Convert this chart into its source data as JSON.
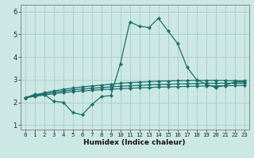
{
  "xlabel": "Humidex (Indice chaleur)",
  "xlim": [
    -0.5,
    23.5
  ],
  "ylim": [
    0.8,
    6.3
  ],
  "yticks": [
    1,
    2,
    3,
    4,
    5,
    6
  ],
  "xticks": [
    0,
    1,
    2,
    3,
    4,
    5,
    6,
    7,
    8,
    9,
    10,
    11,
    12,
    13,
    14,
    15,
    16,
    17,
    18,
    19,
    20,
    21,
    22,
    23
  ],
  "bg_color": "#cce8e4",
  "grid_color": "#aacfcc",
  "line_color": "#1a6e6a",
  "series": [
    [
      2.2,
      2.35,
      2.35,
      2.05,
      2.0,
      1.55,
      1.45,
      1.9,
      2.25,
      2.3,
      3.7,
      5.55,
      5.35,
      5.3,
      5.7,
      5.15,
      4.6,
      3.55,
      3.0,
      2.8,
      2.65,
      2.75,
      2.9,
      2.9
    ],
    [
      2.2,
      2.32,
      2.42,
      2.5,
      2.57,
      2.63,
      2.68,
      2.72,
      2.76,
      2.8,
      2.84,
      2.87,
      2.89,
      2.91,
      2.93,
      2.94,
      2.95,
      2.96,
      2.97,
      2.97,
      2.97,
      2.96,
      2.95,
      2.95
    ],
    [
      2.2,
      2.29,
      2.37,
      2.44,
      2.5,
      2.55,
      2.59,
      2.62,
      2.65,
      2.68,
      2.71,
      2.73,
      2.75,
      2.77,
      2.79,
      2.8,
      2.81,
      2.82,
      2.83,
      2.84,
      2.84,
      2.84,
      2.84,
      2.84
    ],
    [
      2.2,
      2.26,
      2.32,
      2.38,
      2.43,
      2.47,
      2.5,
      2.53,
      2.56,
      2.58,
      2.6,
      2.62,
      2.64,
      2.65,
      2.67,
      2.68,
      2.69,
      2.7,
      2.71,
      2.72,
      2.73,
      2.73,
      2.74,
      2.75
    ]
  ],
  "xlabel_fontsize": 6.5,
  "tick_fontsize": 5.2,
  "ytick_fontsize": 6.0,
  "linewidth": 0.9,
  "markersize": 2.2
}
